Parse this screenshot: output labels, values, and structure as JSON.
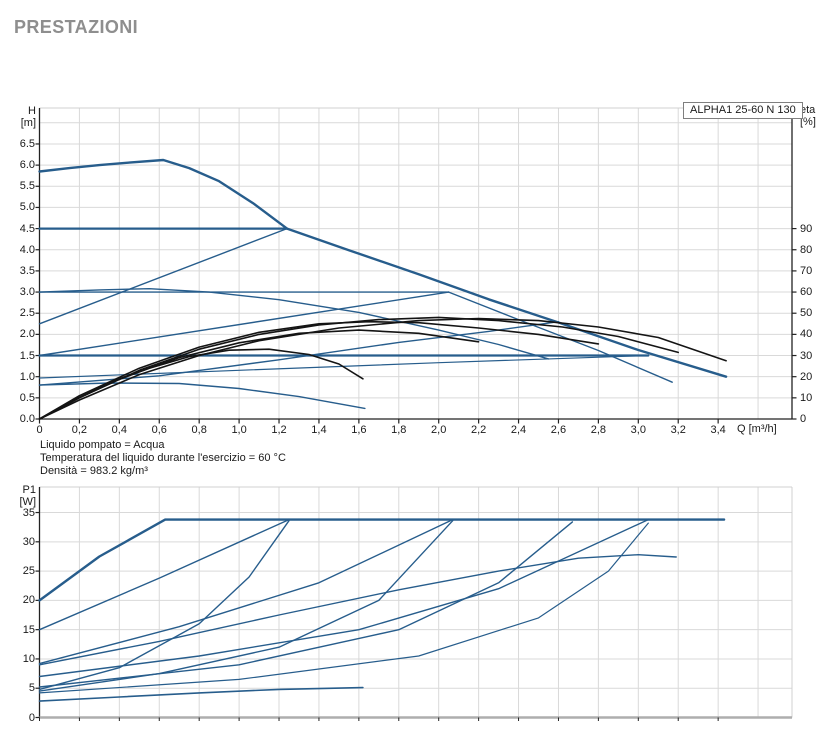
{
  "page": {
    "title": "PRESTAZIONI"
  },
  "colors": {
    "curve_blue": "#275d8c",
    "curve_black": "#141414",
    "grid": "#d9d9d9",
    "axis": "#222222",
    "soft_border": "#d0d0d0",
    "bottom_border": "#aeaeae",
    "title_gray": "#8e8e8e"
  },
  "chart_data": {
    "type": "line",
    "pump_label": "ALPHA1 25-60 N 130",
    "notes": [
      "Liquido pompato = Acqua",
      "Temperatura del liquido durante l'esercizio = 60 °C",
      "Densità = 983.2 kg/m³"
    ],
    "x_axis": {
      "label": "Q [m³/h]",
      "tick_step": 0.2,
      "ticks": [
        "0",
        "0,2",
        "0,4",
        "0,6",
        "0,8",
        "1,0",
        "1,2",
        "1,4",
        "1,6",
        "1,8",
        "2,0",
        "2,2",
        "2,4",
        "2,6",
        "2,8",
        "3,0",
        "3,2",
        "3,4"
      ],
      "min": 0,
      "max": 3.77
    },
    "top_chart": {
      "y_left": {
        "label_lines": [
          "H",
          "[m]"
        ],
        "tick_step": 0.5,
        "ticks": [
          "0.0",
          "0.5",
          "1.0",
          "1.5",
          "2.0",
          "2.5",
          "3.0",
          "3.5",
          "4.0",
          "4.5",
          "5.0",
          "5.5",
          "6.0",
          "6.5"
        ],
        "min": 0,
        "max": 7.35
      },
      "y_right": {
        "label_lines": [
          "eta",
          "[%]"
        ],
        "tick_step": 10,
        "ticks": [
          "0",
          "10",
          "20",
          "30",
          "40",
          "50",
          "60",
          "70",
          "80",
          "90"
        ],
        "min": 0,
        "max": 147
      },
      "grid": true,
      "series": [
        {
          "name": "h-max-speed",
          "axis": "H",
          "width": 2.4,
          "color": "blue",
          "points": [
            [
              0,
              5.85
            ],
            [
              0.15,
              5.93
            ],
            [
              0.3,
              6.0
            ],
            [
              0.45,
              6.06
            ],
            [
              0.62,
              6.12
            ],
            [
              0.75,
              5.93
            ],
            [
              0.9,
              5.62
            ],
            [
              1.07,
              5.1
            ],
            [
              1.24,
              4.5
            ],
            [
              1.55,
              3.99
            ],
            [
              1.9,
              3.42
            ],
            [
              2.25,
              2.83
            ],
            [
              2.6,
              2.28
            ],
            [
              3.0,
              1.63
            ],
            [
              3.44,
              1.0
            ]
          ]
        },
        {
          "name": "h-const-press-4_5",
          "axis": "H",
          "width": 2.2,
          "color": "blue",
          "points": [
            [
              0,
              4.5
            ],
            [
              1.24,
              4.5
            ]
          ]
        },
        {
          "name": "h-prop-press-4_5",
          "axis": "H",
          "width": 1.4,
          "color": "blue",
          "points": [
            [
              0,
              2.25
            ],
            [
              1.24,
              4.5
            ]
          ]
        },
        {
          "name": "h-const-press-3_0",
          "axis": "H",
          "width": 1.4,
          "color": "blue",
          "points": [
            [
              0,
              3.0
            ],
            [
              2.05,
              3.0
            ]
          ]
        },
        {
          "name": "h-prop-press-3_0",
          "axis": "H",
          "width": 1.4,
          "color": "blue",
          "points": [
            [
              0,
              1.5
            ],
            [
              2.05,
              3.0
            ]
          ]
        },
        {
          "name": "h-speed2-tail",
          "axis": "H",
          "width": 1.4,
          "color": "blue",
          "points": [
            [
              2.05,
              3.0
            ],
            [
              2.4,
              2.35
            ],
            [
              2.8,
              1.62
            ],
            [
              3.17,
              0.87
            ]
          ]
        },
        {
          "name": "h-speed2-arc",
          "axis": "H",
          "width": 1.4,
          "color": "blue",
          "points": [
            [
              0,
              3.0
            ],
            [
              0.3,
              3.05
            ],
            [
              0.55,
              3.08
            ],
            [
              0.85,
              3.0
            ],
            [
              1.2,
              2.82
            ],
            [
              1.6,
              2.52
            ],
            [
              2.0,
              2.1
            ],
            [
              2.3,
              1.76
            ],
            [
              2.55,
              1.42
            ]
          ]
        },
        {
          "name": "h-const-press-1_5",
          "axis": "H",
          "width": 2.2,
          "color": "blue",
          "points": [
            [
              0,
              1.5
            ],
            [
              3.05,
              1.5
            ]
          ]
        },
        {
          "name": "h-prop-press-1_5",
          "axis": "H",
          "width": 1.2,
          "color": "blue",
          "points": [
            [
              0,
              0.97
            ],
            [
              1.0,
              1.15
            ],
            [
              2.0,
              1.33
            ],
            [
              3.05,
              1.5
            ]
          ]
        },
        {
          "name": "h-autoadapt",
          "axis": "H",
          "width": 1.4,
          "color": "blue",
          "points": [
            [
              0,
              0.8
            ],
            [
              0.6,
              1.02
            ],
            [
              1.2,
              1.4
            ],
            [
              1.8,
              1.81
            ],
            [
              2.25,
              2.07
            ],
            [
              2.6,
              2.3
            ]
          ]
        },
        {
          "name": "h-min-speed",
          "axis": "H",
          "width": 1.4,
          "color": "blue",
          "points": [
            [
              0,
              0.8
            ],
            [
              0.35,
              0.85
            ],
            [
              0.7,
              0.84
            ],
            [
              1.0,
              0.72
            ],
            [
              1.3,
              0.53
            ],
            [
              1.63,
              0.25
            ]
          ]
        },
        {
          "name": "eta-max-speed",
          "axis": "eta",
          "width": 1.6,
          "color": "black",
          "points": [
            [
              0,
              0
            ],
            [
              0.2,
              9
            ],
            [
              0.5,
              21
            ],
            [
              0.8,
              30
            ],
            [
              1.1,
              37
            ],
            [
              1.5,
              43
            ],
            [
              1.9,
              46.5
            ],
            [
              2.2,
              47.5
            ],
            [
              2.5,
              46.5
            ],
            [
              2.8,
              43.5
            ],
            [
              3.1,
              38.5
            ],
            [
              3.44,
              27.5
            ]
          ]
        },
        {
          "name": "eta-curve-2",
          "axis": "eta",
          "width": 1.6,
          "color": "black",
          "points": [
            [
              0,
              0
            ],
            [
              0.2,
              10
            ],
            [
              0.5,
              23
            ],
            [
              0.8,
              33
            ],
            [
              1.1,
              40
            ],
            [
              1.4,
              44.5
            ],
            [
              1.7,
              47
            ],
            [
              2.0,
              48
            ],
            [
              2.3,
              46.5
            ],
            [
              2.62,
              43.5
            ],
            [
              2.9,
              39
            ],
            [
              3.2,
              31.5
            ]
          ]
        },
        {
          "name": "eta-curve-3",
          "axis": "eta",
          "width": 1.6,
          "color": "black",
          "points": [
            [
              0,
              0
            ],
            [
              0.2,
              11
            ],
            [
              0.5,
              24
            ],
            [
              0.8,
              34
            ],
            [
              1.1,
              41
            ],
            [
              1.4,
              45
            ],
            [
              1.65,
              46
            ],
            [
              1.9,
              45.5
            ],
            [
              2.2,
              43
            ],
            [
              2.5,
              40
            ],
            [
              2.8,
              35.5
            ]
          ]
        },
        {
          "name": "eta-curve-mid",
          "axis": "eta",
          "width": 1.6,
          "color": "black",
          "points": [
            [
              0,
              0
            ],
            [
              0.2,
              10
            ],
            [
              0.4,
              19
            ],
            [
              0.7,
              29
            ],
            [
              1.0,
              36
            ],
            [
              1.3,
              40.5
            ],
            [
              1.6,
              42
            ],
            [
              1.9,
              40.5
            ],
            [
              2.2,
              36.5
            ]
          ]
        },
        {
          "name": "eta-min-speed",
          "axis": "eta",
          "width": 1.6,
          "color": "black",
          "points": [
            [
              0,
              0
            ],
            [
              0.15,
              8
            ],
            [
              0.35,
              17
            ],
            [
              0.55,
              24
            ],
            [
              0.75,
              29.5
            ],
            [
              0.95,
              32.5
            ],
            [
              1.15,
              33
            ],
            [
              1.35,
              30.5
            ],
            [
              1.5,
              26
            ],
            [
              1.62,
              19
            ]
          ]
        }
      ]
    },
    "bottom_chart": {
      "y_left": {
        "label_lines": [
          "P1",
          "[W]"
        ],
        "tick_step": 5,
        "ticks": [
          "0",
          "5",
          "10",
          "15",
          "20",
          "25",
          "30",
          "35"
        ],
        "min": 0,
        "max": 39.36
      },
      "grid": true,
      "series": [
        {
          "name": "p1-max-speed",
          "axis": "P",
          "width": 2.4,
          "color": "blue",
          "points": [
            [
              0,
              20
            ],
            [
              0.3,
              27.5
            ],
            [
              0.63,
              33.8
            ],
            [
              3.43,
              33.8
            ]
          ]
        },
        {
          "name": "p1-const-press-4_5",
          "axis": "P",
          "width": 1.4,
          "color": "blue",
          "points": [
            [
              0,
              15
            ],
            [
              0.6,
              23.8
            ],
            [
              1.25,
              33.8
            ]
          ]
        },
        {
          "name": "p1-prop-press-4_5",
          "axis": "P",
          "width": 1.4,
          "color": "blue",
          "points": [
            [
              0,
              4.8
            ],
            [
              0.4,
              8.5
            ],
            [
              0.8,
              16
            ],
            [
              1.05,
              24
            ],
            [
              1.25,
              33.6
            ]
          ]
        },
        {
          "name": "p1-const-press-3_0",
          "axis": "P",
          "width": 1.4,
          "color": "blue",
          "points": [
            [
              0,
              9.2
            ],
            [
              0.7,
              15.5
            ],
            [
              1.4,
              23
            ],
            [
              2.07,
              33.8
            ]
          ]
        },
        {
          "name": "p1-prop-press-3_0",
          "axis": "P",
          "width": 1.4,
          "color": "blue",
          "points": [
            [
              0,
              4.5
            ],
            [
              0.6,
              7.5
            ],
            [
              1.2,
              12
            ],
            [
              1.7,
              20
            ],
            [
              2.07,
              33.6
            ]
          ]
        },
        {
          "name": "p1-const-press-1_5",
          "axis": "P",
          "width": 1.4,
          "color": "blue",
          "points": [
            [
              0,
              7
            ],
            [
              0.8,
              10.5
            ],
            [
              1.6,
              15
            ],
            [
              2.3,
              22
            ],
            [
              3.05,
              33.8
            ]
          ]
        },
        {
          "name": "p1-autoadapt",
          "axis": "P",
          "width": 1.4,
          "color": "blue",
          "points": [
            [
              0,
              5.2
            ],
            [
              1.0,
              9
            ],
            [
              1.8,
              15
            ],
            [
              2.3,
              23
            ],
            [
              2.67,
              33.4
            ]
          ]
        },
        {
          "name": "p1-prop-press-1_5",
          "axis": "P",
          "width": 1.2,
          "color": "blue",
          "points": [
            [
              0,
              4.2
            ],
            [
              1.0,
              6.5
            ],
            [
              1.9,
              10.5
            ],
            [
              2.5,
              17
            ],
            [
              2.85,
              25
            ],
            [
              3.05,
              33.2
            ]
          ]
        },
        {
          "name": "p1-speed2-arc",
          "axis": "P",
          "width": 1.4,
          "color": "blue",
          "points": [
            [
              0,
              9.0
            ],
            [
              0.6,
              13
            ],
            [
              1.2,
              17.5
            ],
            [
              1.8,
              21.8
            ],
            [
              2.3,
              25
            ],
            [
              2.7,
              27.2
            ],
            [
              3.0,
              27.8
            ],
            [
              3.19,
              27.4
            ]
          ]
        },
        {
          "name": "p1-min-speed",
          "axis": "P",
          "width": 1.6,
          "color": "blue",
          "points": [
            [
              0,
              2.8
            ],
            [
              0.4,
              3.5
            ],
            [
              0.8,
              4.2
            ],
            [
              1.2,
              4.8
            ],
            [
              1.62,
              5.1
            ]
          ]
        }
      ]
    }
  }
}
